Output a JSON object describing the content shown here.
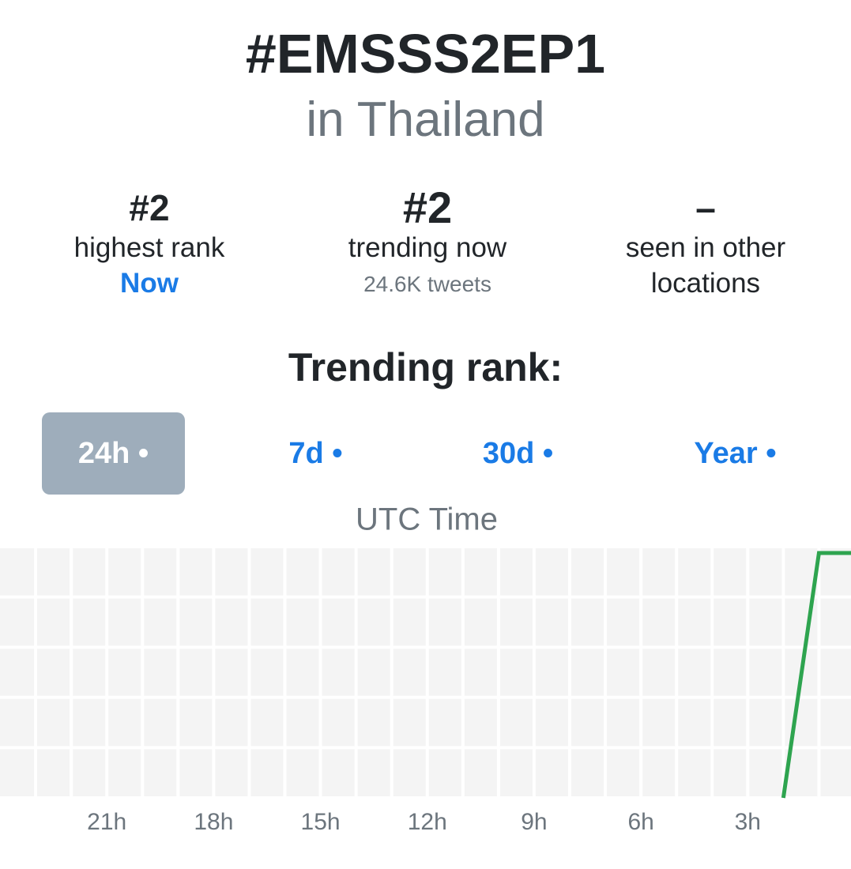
{
  "header": {
    "title": "#EMSSS2EP1",
    "subtitle": "in Thailand"
  },
  "stats": [
    {
      "value": "#2",
      "label": "highest rank",
      "note": "Now"
    },
    {
      "value": "#2",
      "label": "trending now",
      "note": "24.6K tweets"
    },
    {
      "value": "–",
      "label": "seen in other locations"
    }
  ],
  "section_title": "Trending rank:",
  "tabs": [
    "24h •",
    "7d •",
    "30d •",
    "Year •"
  ],
  "chart_data": {
    "type": "line",
    "title": "UTC Time",
    "x": [
      2,
      1,
      0.1
    ],
    "series": [
      {
        "name": "rank",
        "color": "#2ea44f",
        "values": [
          41,
          2,
          2
        ]
      }
    ],
    "xlim": [
      24,
      0.1
    ],
    "xticks": [
      {
        "value": 21,
        "label": "21h"
      },
      {
        "value": 18,
        "label": "18h"
      },
      {
        "value": 15,
        "label": "15h"
      },
      {
        "value": 12,
        "label": "12h"
      },
      {
        "value": 9,
        "label": "9h"
      },
      {
        "value": 6,
        "label": "6h"
      },
      {
        "value": 3,
        "label": "3h"
      }
    ],
    "xgrid": [
      23,
      22,
      21,
      20,
      19,
      18,
      17,
      16,
      15,
      14,
      13,
      12,
      11,
      10,
      9,
      8,
      7,
      6,
      5,
      4,
      3,
      2,
      1
    ],
    "ylim": [
      41,
      1
    ],
    "yticks": [
      41,
      33,
      25,
      17,
      9,
      1
    ],
    "grid": true
  }
}
